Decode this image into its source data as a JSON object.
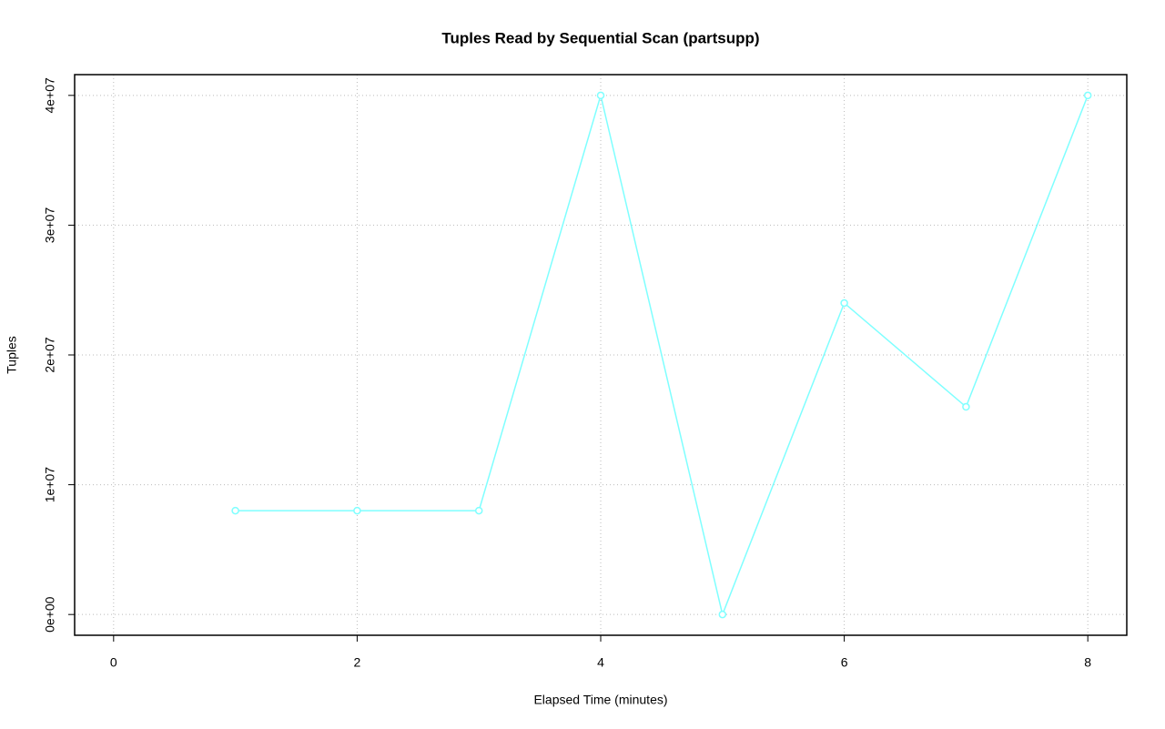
{
  "chart_data": {
    "type": "line",
    "title": "Tuples Read by Sequential Scan (partsupp)",
    "x_label": "Elapsed Time (minutes)",
    "y_label": "Tuples",
    "x": [
      1,
      2,
      3,
      4,
      5,
      6,
      7,
      8
    ],
    "values": [
      8000000,
      8000000,
      8000000,
      40000000,
      0,
      24000000,
      16000000,
      40000000
    ],
    "color": "#7fffff",
    "xlim": [
      -0.32,
      8.32
    ],
    "ylim": [
      -1600000,
      41600000
    ],
    "xticks": [
      0,
      2,
      4,
      6,
      8
    ],
    "yticks": [
      {
        "value": 0,
        "label": "0e+00"
      },
      {
        "value": 10000000,
        "label": "1e+07"
      },
      {
        "value": 20000000,
        "label": "2e+07"
      },
      {
        "value": 30000000,
        "label": "3e+07"
      },
      {
        "value": 40000000,
        "label": "4e+07"
      }
    ],
    "grid": true
  }
}
